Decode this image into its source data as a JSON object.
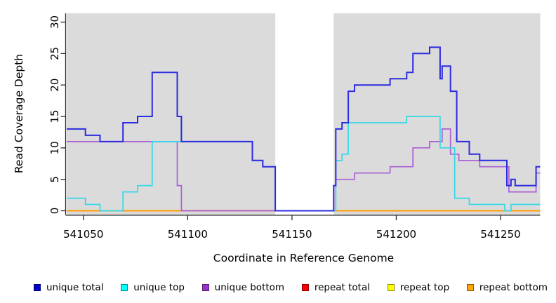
{
  "figure": {
    "x_title": "Coordinate in Reference Genome",
    "y_title": "Read Coverage Depth"
  },
  "chart_data": {
    "type": "line",
    "step": true,
    "title": "",
    "xlabel": "Coordinate in Reference Genome",
    "ylabel": "Read Coverage Depth",
    "xlim": [
      541042,
      541269
    ],
    "ylim": [
      0,
      31
    ],
    "x_ticks": [
      541050,
      541100,
      541150,
      541200,
      541250
    ],
    "y_ticks": [
      0,
      5,
      10,
      15,
      20,
      25,
      30
    ],
    "grid": false,
    "plot_background": "#dbdbdb",
    "masked_region": {
      "start": 541142,
      "end": 541170,
      "color": "#ffffff"
    },
    "axis_color": "#2b2b2b",
    "series": [
      {
        "name": "repeat total",
        "color": "#f02222",
        "lw": 1.5,
        "paths": [
          [
            [
              541042,
              0
            ],
            [
              541142,
              0
            ]
          ],
          [
            [
              541170,
              0
            ],
            [
              541269,
              0
            ]
          ]
        ]
      },
      {
        "name": "repeat top",
        "color": "#ffee00",
        "lw": 1.5,
        "paths": [
          [
            [
              541042,
              0
            ],
            [
              541142,
              0
            ]
          ],
          [
            [
              541170,
              0
            ],
            [
              541269,
              0
            ]
          ]
        ]
      },
      {
        "name": "repeat bottom",
        "color": "#ff9d00",
        "lw": 2,
        "paths": [
          [
            [
              541042,
              0
            ],
            [
              541142,
              0
            ]
          ],
          [
            [
              541170,
              0
            ],
            [
              541269,
              0
            ]
          ]
        ]
      },
      {
        "name": "unique bottom",
        "color": "#ab5fd6",
        "lw": 1.7,
        "paths": [
          [
            [
              541042,
              11
            ],
            [
              541095,
              4
            ],
            [
              541097,
              0
            ],
            [
              541170,
              4
            ],
            [
              541171,
              5
            ],
            [
              541180,
              6
            ],
            [
              541197,
              7
            ],
            [
              541208,
              10
            ],
            [
              541216,
              11
            ],
            [
              541222,
              13
            ],
            [
              541226,
              9
            ],
            [
              541230,
              8
            ],
            [
              541240,
              7
            ],
            [
              541254,
              3
            ],
            [
              541267,
              6
            ],
            [
              541269,
              6
            ]
          ]
        ]
      },
      {
        "name": "unique top",
        "color": "#35d8e8",
        "lw": 1.7,
        "paths": [
          [
            [
              541042,
              2
            ],
            [
              541051,
              1
            ],
            [
              541058,
              0
            ],
            [
              541069,
              3
            ],
            [
              541076,
              4
            ],
            [
              541083,
              11
            ],
            [
              541131,
              8
            ],
            [
              541136,
              7
            ],
            [
              541142,
              0
            ],
            [
              541171,
              8
            ],
            [
              541174,
              9
            ],
            [
              541177,
              14
            ],
            [
              541205,
              15
            ],
            [
              541221,
              10
            ],
            [
              541228,
              2
            ],
            [
              541235,
              1
            ],
            [
              541252,
              0
            ],
            [
              541255,
              1
            ],
            [
              541269,
              1
            ]
          ]
        ]
      },
      {
        "name": "unique total",
        "color": "#2b2be0",
        "lw": 2,
        "paths": [
          [
            [
              541042,
              13
            ],
            [
              541051,
              12
            ],
            [
              541058,
              11
            ],
            [
              541069,
              14
            ],
            [
              541076,
              15
            ],
            [
              541083,
              22
            ],
            [
              541095,
              15
            ],
            [
              541097,
              11
            ],
            [
              541131,
              8
            ],
            [
              541136,
              7
            ],
            [
              541142,
              0
            ],
            [
              541170,
              4
            ],
            [
              541171,
              13
            ],
            [
              541174,
              14
            ],
            [
              541177,
              19
            ],
            [
              541180,
              20
            ],
            [
              541197,
              21
            ],
            [
              541205,
              22
            ],
            [
              541208,
              25
            ],
            [
              541216,
              26
            ],
            [
              541221,
              21
            ],
            [
              541222,
              23
            ],
            [
              541226,
              19
            ],
            [
              541229,
              11
            ],
            [
              541235,
              9
            ],
            [
              541240,
              8
            ],
            [
              541253,
              4
            ],
            [
              541255,
              5
            ],
            [
              541257,
              4
            ],
            [
              541267,
              7
            ],
            [
              541269,
              7
            ]
          ]
        ]
      }
    ],
    "legend": [
      {
        "label": "unique total",
        "color": "#0000cc"
      },
      {
        "label": "unique top",
        "color": "#00ffff"
      },
      {
        "label": "unique bottom",
        "color": "#9933cc"
      },
      {
        "label": "repeat total",
        "color": "#ff0000"
      },
      {
        "label": "repeat top",
        "color": "#ffff00"
      },
      {
        "label": "repeat bottom",
        "color": "#ffa500"
      }
    ],
    "legend_position": "bottom"
  }
}
